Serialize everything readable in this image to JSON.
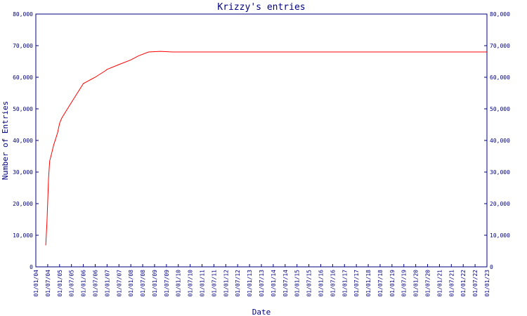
{
  "chart_data": {
    "type": "line",
    "title": "Krizzy's entries",
    "xlabel": "Date",
    "ylabel": "Number of Entries",
    "ylim": [
      0,
      80000
    ],
    "y_ticks": [
      "0",
      "10,000",
      "20,000",
      "30,000",
      "40,000",
      "50,000",
      "60,000",
      "70,000",
      "80,000"
    ],
    "y_tick_values": [
      0,
      10000,
      20000,
      30000,
      40000,
      50000,
      60000,
      70000,
      80000
    ],
    "x_ticks": [
      "01/01/04",
      "01/07/04",
      "01/01/05",
      "01/07/05",
      "01/01/06",
      "01/07/06",
      "01/01/07",
      "01/07/07",
      "01/01/08",
      "01/07/08",
      "01/01/09",
      "01/07/09",
      "01/01/10",
      "01/07/10",
      "01/01/11",
      "01/07/11",
      "01/01/12",
      "01/07/12",
      "01/01/13",
      "01/07/13",
      "01/01/14",
      "01/07/14",
      "01/01/15",
      "01/07/15",
      "01/01/16",
      "01/07/16",
      "01/01/17",
      "01/07/17",
      "01/01/18",
      "01/07/18",
      "01/01/19",
      "01/07/19",
      "01/01/20",
      "01/07/20",
      "01/01/21",
      "01/07/21",
      "01/01/22",
      "01/07/22",
      "01/01/23"
    ],
    "xlim": [
      "2004-01-01",
      "2023-01-01"
    ],
    "grid": false,
    "line_color": "#ff0000",
    "axis_color": "#000080",
    "series": [
      {
        "x": [
          "2004-06-01",
          "2004-06-20",
          "2004-07-01",
          "2004-07-15",
          "2004-08-01",
          "2004-09-01",
          "2004-10-01",
          "2004-11-01",
          "2004-12-01",
          "2005-01-01",
          "2005-02-01",
          "2005-04-01",
          "2005-07-01",
          "2005-10-01",
          "2006-01-01",
          "2006-07-01",
          "2006-12-01",
          "2007-01-01",
          "2007-07-01",
          "2008-01-01",
          "2008-05-01",
          "2008-10-01",
          "2009-04-01",
          "2009-10-01",
          "2023-01-01"
        ],
        "y": [
          6800,
          14000,
          20000,
          28000,
          33500,
          36000,
          38500,
          40500,
          42500,
          45500,
          47000,
          49000,
          52000,
          55000,
          58000,
          60000,
          62000,
          62500,
          64000,
          65500,
          66800,
          68000,
          68200,
          68000,
          68000
        ]
      }
    ]
  }
}
